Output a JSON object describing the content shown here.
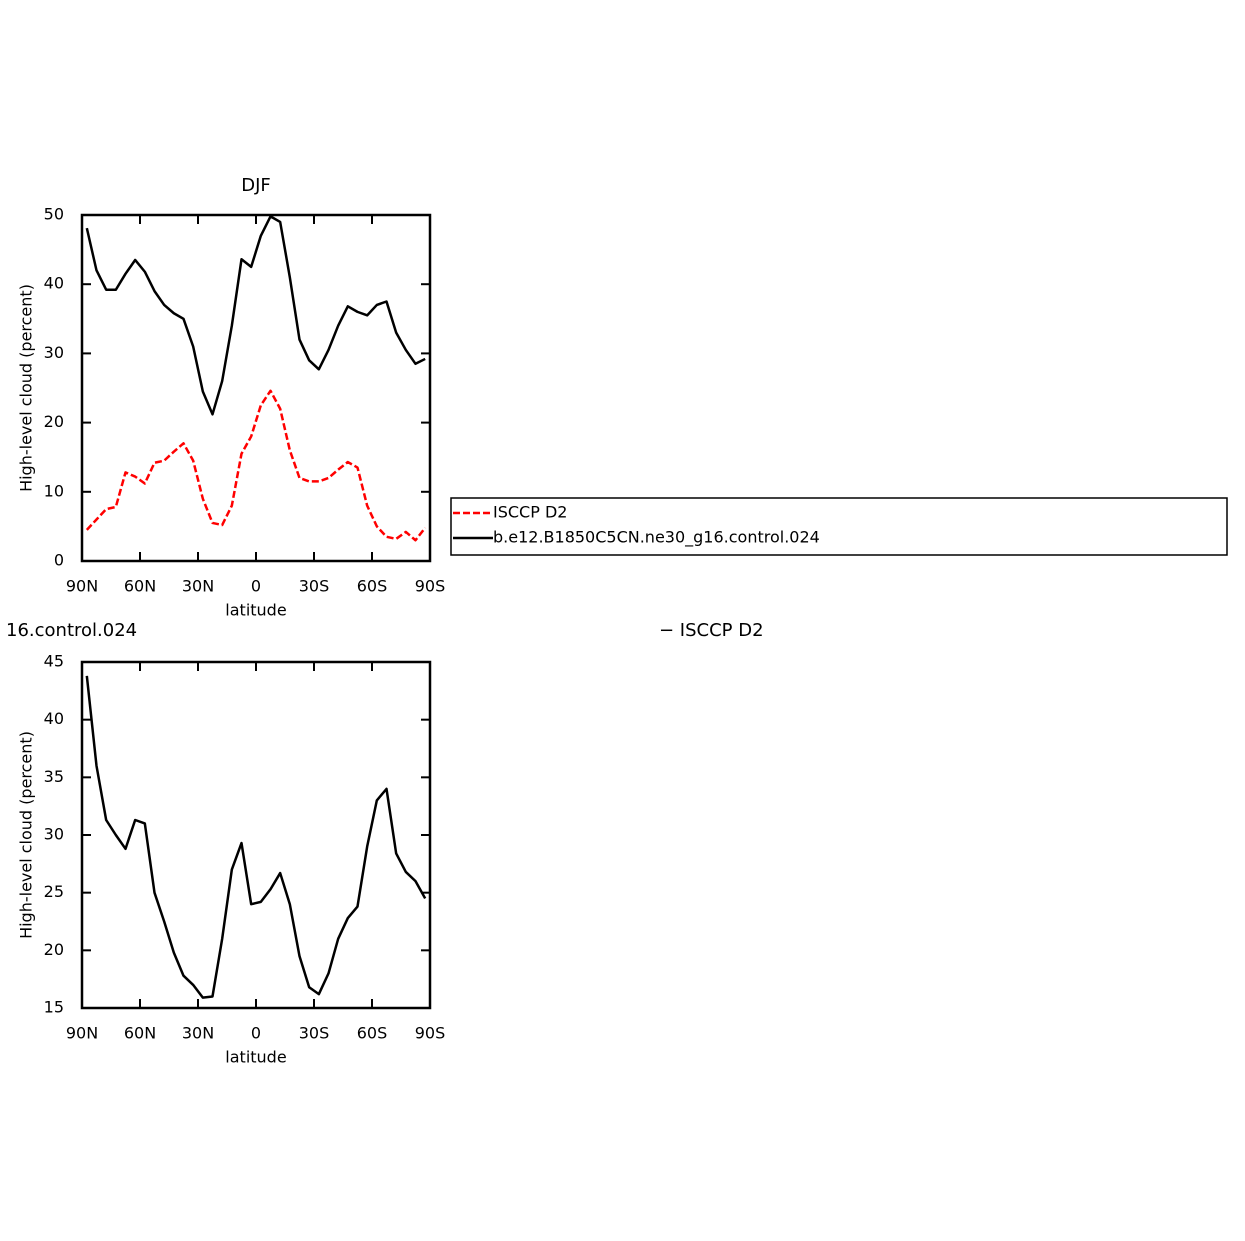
{
  "chart_data": [
    {
      "type": "line",
      "title": "DJF",
      "xlabel": "latitude",
      "ylabel": "High-level cloud (percent)",
      "x": [
        87.5,
        82.5,
        77.5,
        72.5,
        67.5,
        62.5,
        57.5,
        52.5,
        47.5,
        42.5,
        37.5,
        32.5,
        27.5,
        22.5,
        17.5,
        12.5,
        7.5,
        2.5,
        -2.5,
        -7.5,
        -12.5,
        -17.5,
        -22.5,
        -27.5,
        -32.5,
        -37.5,
        -42.5,
        -47.5,
        -52.5,
        -57.5,
        -62.5,
        -67.5,
        -72.5,
        -77.5,
        -82.5,
        -87.5
      ],
      "series": [
        {
          "name": "ISCCP D2",
          "color": "#ff0000",
          "dashed": true,
          "values": [
            4.5,
            6,
            7.5,
            7.8,
            12.8,
            12.2,
            11.2,
            14.2,
            14.5,
            15.8,
            17,
            14.5,
            9,
            5.5,
            5.2,
            8,
            15.5,
            18,
            22.5,
            24.6,
            22,
            16,
            12,
            11.5,
            11.5,
            12,
            13.2,
            14.3,
            13.5,
            8,
            5,
            3.5,
            3.2,
            4.2,
            3,
            4.8
          ]
        },
        {
          "name": "b.e12.B1850C5CN.ne30_g16.control.024",
          "color": "#000000",
          "dashed": false,
          "values": [
            48.1,
            42,
            39.2,
            39.2,
            41.5,
            43.5,
            41.8,
            39,
            37,
            35.8,
            35,
            31,
            24.5,
            21.2,
            26,
            34,
            43.6,
            42.5,
            47,
            49.8,
            49,
            41,
            32,
            29,
            27.7,
            30.5,
            34,
            36.8,
            36,
            35.5,
            37,
            37.5,
            33,
            30.5,
            28.5,
            29.2
          ]
        }
      ],
      "xlim": [
        90,
        -90
      ],
      "xticks": [
        {
          "value": 90,
          "label": "90N"
        },
        {
          "value": 60,
          "label": "60N"
        },
        {
          "value": 30,
          "label": "30N"
        },
        0,
        {
          "value": -30,
          "label": "30S"
        },
        {
          "value": -60,
          "label": "60S"
        },
        {
          "value": -90,
          "label": "90S"
        }
      ],
      "ylim": [
        0,
        50
      ],
      "yticks": [
        0,
        10,
        20,
        30,
        40,
        50
      ]
    },
    {
      "type": "line",
      "title_parts": [
        "16.control.024",
        "− ISCCP D2"
      ],
      "xlabel": "latitude",
      "ylabel": "High-level cloud (percent)",
      "x": [
        87.5,
        82.5,
        77.5,
        72.5,
        67.5,
        62.5,
        57.5,
        52.5,
        47.5,
        42.5,
        37.5,
        32.5,
        27.5,
        22.5,
        17.5,
        12.5,
        7.5,
        2.5,
        -2.5,
        -7.5,
        -12.5,
        -17.5,
        -22.5,
        -27.5,
        -32.5,
        -37.5,
        -42.5,
        -47.5,
        -52.5,
        -57.5,
        -62.5,
        -67.5,
        -72.5,
        -77.5,
        -82.5,
        -87.5
      ],
      "color": "#000000",
      "values": [
        43.8,
        36,
        31.3,
        30,
        28.8,
        31.3,
        31,
        25,
        22.5,
        19.8,
        17.8,
        17,
        15.9,
        16,
        21,
        27,
        29.3,
        24,
        24.2,
        25.3,
        26.7,
        24,
        19.5,
        16.8,
        16.2,
        18,
        21,
        22.8,
        23.8,
        29,
        33,
        34,
        28.4,
        26.8,
        26,
        24.5
      ],
      "xlim": [
        90,
        -90
      ],
      "xticks": [
        {
          "value": 90,
          "label": "90N"
        },
        {
          "value": 60,
          "label": "60N"
        },
        {
          "value": 30,
          "label": "30N"
        },
        0,
        {
          "value": -30,
          "label": "30S"
        },
        {
          "value": -60,
          "label": "60S"
        },
        {
          "value": -90,
          "label": "90S"
        }
      ],
      "ylim": [
        15,
        45
      ],
      "yticks": [
        15,
        20,
        25,
        30,
        35,
        40,
        45
      ]
    }
  ]
}
